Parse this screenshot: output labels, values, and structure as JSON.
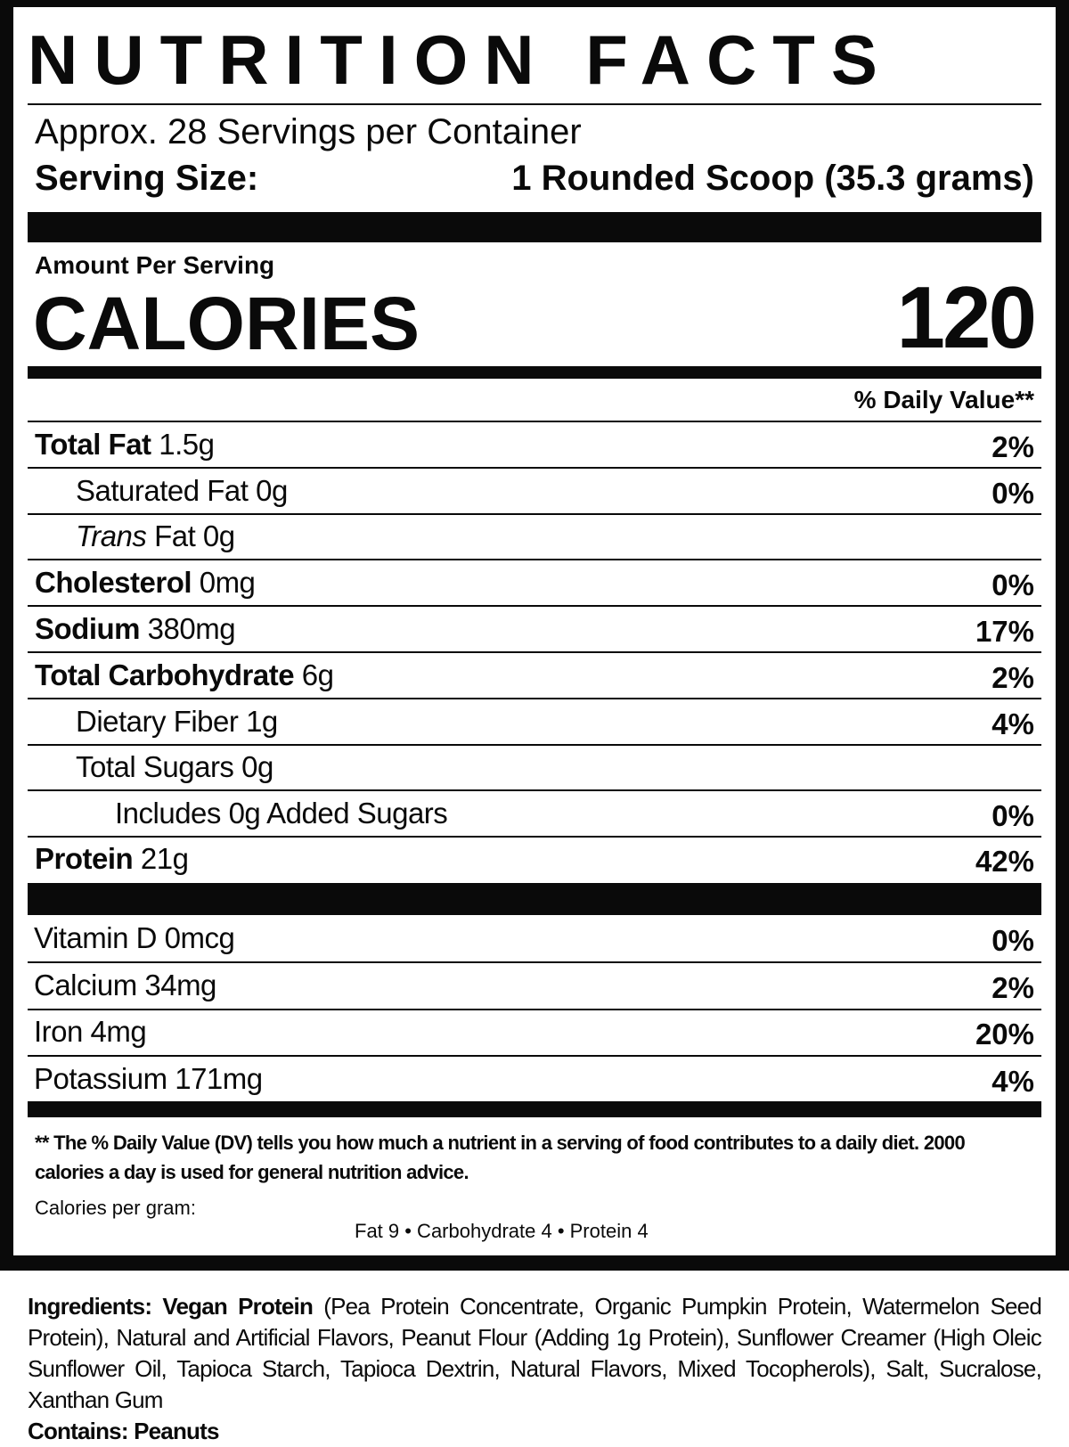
{
  "label": {
    "title": "NUTRITION FACTS",
    "servings_per_container": "Approx. 28 Servings per Container",
    "serving_size_label": "Serving Size:",
    "serving_size_value": "1 Rounded Scoop (35.3 grams)",
    "amount_per_serving": "Amount Per Serving",
    "calories_label": "CALORIES",
    "calories_value": "120",
    "daily_value_header": "% Daily Value**",
    "nutrients": [
      {
        "name": "Total Fat",
        "amount": "1.5g",
        "dv": "2%"
      },
      {
        "name": "Saturated Fat",
        "amount": "0g",
        "dv": "0%"
      },
      {
        "name": "Trans",
        "amount": "Fat 0g",
        "dv": ""
      },
      {
        "name": "Cholesterol",
        "amount": "0mg",
        "dv": "0%"
      },
      {
        "name": "Sodium",
        "amount": "380mg",
        "dv": "17%"
      },
      {
        "name": "Total Carbohydrate",
        "amount": "6g",
        "dv": "2%"
      },
      {
        "name": "Dietary Fiber",
        "amount": "1g",
        "dv": "4%"
      },
      {
        "name": "Total Sugars",
        "amount": "0g",
        "dv": ""
      },
      {
        "name": "Includes 0g Added Sugars",
        "amount": "",
        "dv": "0%"
      },
      {
        "name": "Protein",
        "amount": "21g",
        "dv": "42%"
      }
    ],
    "vitamins": [
      {
        "name": "Vitamin D 0mcg",
        "dv": "0%"
      },
      {
        "name": "Calcium 34mg",
        "dv": "2%"
      },
      {
        "name": "Iron 4mg",
        "dv": "20%"
      },
      {
        "name": "Potassium 171mg",
        "dv": "4%"
      }
    ],
    "footnote": "** The % Daily Value (DV) tells you how much a nutrient in a serving of food contributes to a daily diet. 2000 calories a day is used for general nutrition advice.",
    "calories_per_gram_label": "Calories per gram:",
    "calories_per_gram_values": "Fat 9 • Carbohydrate 4 • Protein 4"
  },
  "ingredients": {
    "label": "Ingredients:",
    "primary": "Vegan Protein",
    "text": "(Pea Protein Concentrate, Organic Pumpkin Protein, Watermelon Seed Protein), Natural and Artificial Flavors, Peanut Flour (Adding 1g Protein), Sunflower Creamer (High Oleic Sunflower Oil, Tapioca Starch, Tapioca Dextrin, Natural Flavors, Mixed Tocopherols), Salt, Sucralose, Xanthan Gum",
    "contains": "Contains: Peanuts"
  }
}
